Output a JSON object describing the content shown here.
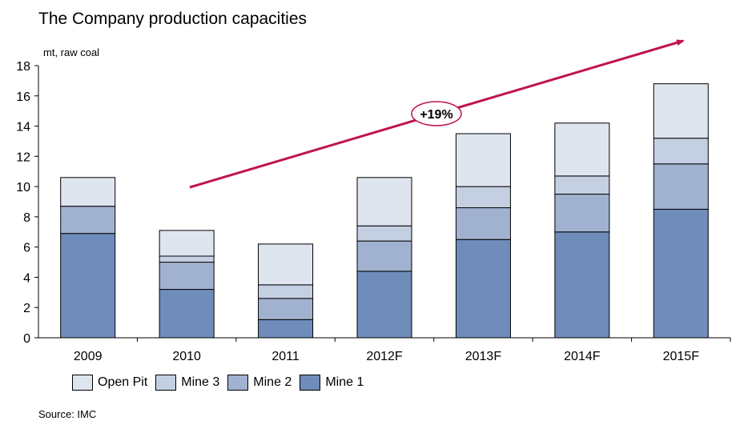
{
  "chart_data": {
    "type": "bar",
    "stacked": true,
    "title": "The Company production capacities",
    "ylabel": "mt, raw coal",
    "ylim": [
      0,
      18
    ],
    "yticks": [
      0,
      2,
      4,
      6,
      8,
      10,
      12,
      14,
      16,
      18
    ],
    "grid": false,
    "legend_position": "bottom-left",
    "categories": [
      "2009",
      "2010",
      "2011",
      "2012F",
      "2013F",
      "2014F",
      "2015F"
    ],
    "series": [
      {
        "name": "Mine 1",
        "color": "#6f8cba",
        "values": [
          6.9,
          3.2,
          1.2,
          4.4,
          6.5,
          7.0,
          8.5
        ]
      },
      {
        "name": "Mine 2",
        "color": "#a1b2d0",
        "values": [
          1.8,
          1.8,
          1.4,
          2.0,
          2.1,
          2.5,
          3.0
        ]
      },
      {
        "name": "Mine 3",
        "color": "#c4cfe2",
        "values": [
          0.0,
          0.4,
          0.9,
          1.0,
          1.4,
          1.2,
          1.7
        ]
      },
      {
        "name": "Open Pit",
        "color": "#dfe5ef",
        "values": [
          1.9,
          1.7,
          2.7,
          3.2,
          3.5,
          3.5,
          3.6
        ]
      }
    ],
    "annotation": {
      "text": "+19%",
      "arrow_color": "#c0144c"
    },
    "source": "Source:  IMC"
  }
}
